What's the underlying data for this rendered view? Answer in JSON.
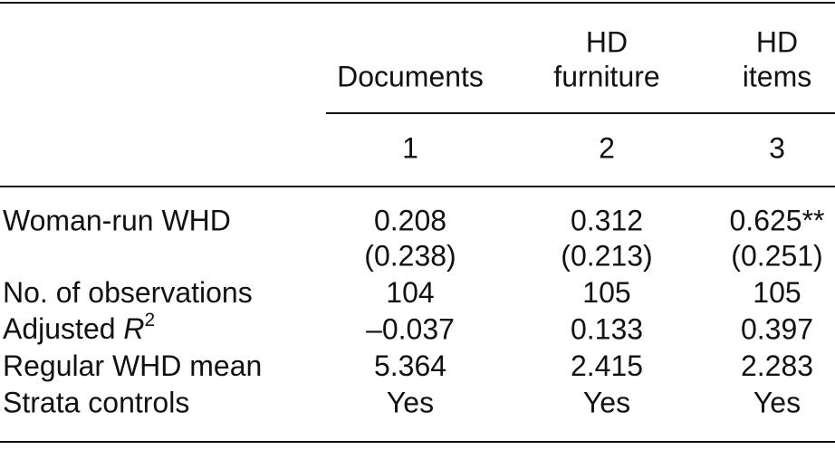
{
  "table": {
    "columns": [
      {
        "lines": [
          "Documents"
        ]
      },
      {
        "lines": [
          "HD",
          "furniture"
        ]
      },
      {
        "lines": [
          "HD",
          "items"
        ]
      }
    ],
    "column_numbers": [
      "1",
      "2",
      "3"
    ],
    "rows": [
      {
        "label": "Woman-run WHD",
        "values": [
          "0.208",
          "0.312",
          "0.625**"
        ],
        "se": [
          "(0.238)",
          "(0.213)",
          "(0.251)"
        ]
      },
      {
        "label": "No. of observations",
        "values": [
          "104",
          "105",
          "105"
        ]
      },
      {
        "label": {
          "text": "Adjusted ",
          "var": "R",
          "sup": "2"
        },
        "values": [
          "–0.037",
          "0.133",
          "0.397"
        ]
      },
      {
        "label": "Regular WHD mean",
        "values": [
          "5.364",
          "2.415",
          "2.283"
        ]
      },
      {
        "label": "Strata controls",
        "values": [
          "Yes",
          "Yes",
          "Yes"
        ]
      }
    ]
  }
}
